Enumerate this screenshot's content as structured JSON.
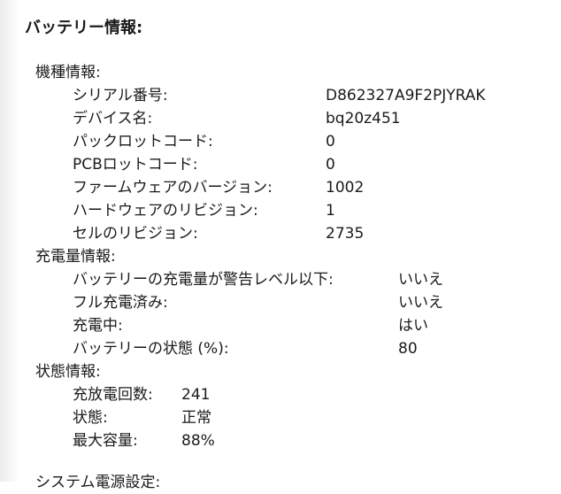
{
  "title": "バッテリー情報:",
  "sections": [
    {
      "label": "機種情報:",
      "rows": [
        {
          "label": "シリアル番号:",
          "value": "D862327A9F2PJYRAK"
        },
        {
          "label": "デバイス名:",
          "value": "bq20z451"
        },
        {
          "label": "パックロットコード:",
          "value": "0"
        },
        {
          "label": "PCBロットコード:",
          "value": "0"
        },
        {
          "label": "ファームウェアのバージョン:",
          "value": "1002"
        },
        {
          "label": "ハードウェアのリビジョン:",
          "value": "1"
        },
        {
          "label": "セルのリビジョン:",
          "value": "2735"
        }
      ]
    },
    {
      "label": "充電量情報:",
      "rows": [
        {
          "label": "バッテリーの充電量が警告レベル以下:",
          "value": "いいえ"
        },
        {
          "label": "フル充電済み:",
          "value": "いいえ"
        },
        {
          "label": "充電中:",
          "value": "はい"
        },
        {
          "label": "バッテリーの状態 (%):",
          "value": "80"
        }
      ]
    },
    {
      "label": "状態情報:",
      "rows": [
        {
          "label": "充放電回数:",
          "value": "241"
        },
        {
          "label": "状態:",
          "value": "正常"
        },
        {
          "label": "最大容量:",
          "value": "88%"
        }
      ]
    }
  ],
  "next_section": "システム電源設定:"
}
